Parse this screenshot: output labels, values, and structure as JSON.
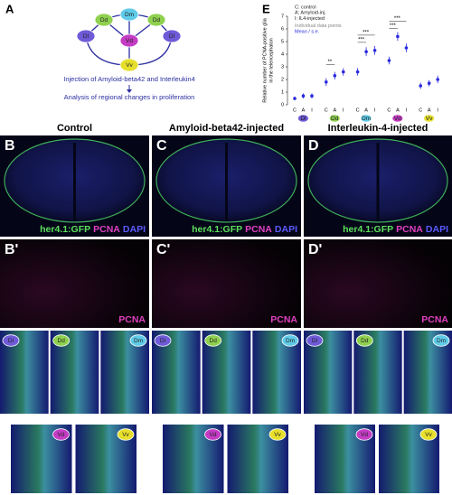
{
  "panel_a": {
    "label": "A",
    "nodes": [
      "Dd",
      "Dm",
      "Dd",
      "Dl",
      "Vd",
      "Dl",
      "Vv"
    ],
    "caption": [
      "Injection of Amyloid-beta42 and Interleukin4",
      "Analysis of regional changes in proliferation"
    ]
  },
  "panel_e": {
    "label": "E",
    "legend": [
      "C: control",
      "A: Amyloid-inj.",
      "I: IL4-injected",
      "Individual data points",
      "Mean / s.e."
    ],
    "y_label": [
      "Relative number of PCNA-positive glia",
      "in the telencephalon"
    ],
    "ylim": [
      0,
      7
    ],
    "yticks": [
      0,
      1,
      2,
      3,
      4,
      5,
      6,
      7
    ],
    "groups": [
      "Dl",
      "Dd",
      "Dm",
      "Vd",
      "Vv"
    ],
    "conditions": [
      "C",
      "A",
      "I"
    ],
    "means": [
      [
        0.5,
        0.7,
        0.7
      ],
      [
        1.8,
        2.3,
        2.6
      ],
      [
        2.6,
        4.2,
        4.3
      ],
      [
        3.5,
        5.4,
        4.5
      ],
      [
        1.5,
        1.7,
        2.0
      ]
    ],
    "errors": [
      [
        0.15,
        0.2,
        0.2
      ],
      [
        0.3,
        0.3,
        0.3
      ],
      [
        0.3,
        0.35,
        0.35
      ],
      [
        0.3,
        0.35,
        0.35
      ],
      [
        0.25,
        0.25,
        0.3
      ]
    ],
    "significance": [
      [],
      [
        "**"
      ],
      [
        "***",
        "***"
      ],
      [
        "***",
        "***"
      ],
      []
    ]
  },
  "stain_labels": [
    "her4.1:GFP",
    "PCNA",
    "DAPI"
  ],
  "panels": [
    {
      "header": "Control",
      "letter": "B",
      "letter2": "B'",
      "tags": [
        "Dl",
        "Dd",
        "Dm",
        "Vd",
        "Vv"
      ]
    },
    {
      "header": "Amyloid-beta42-injected",
      "letter": "C",
      "letter2": "C'",
      "tags": [
        "Dl",
        "Dd",
        "Dm",
        "Vd",
        "Vv"
      ]
    },
    {
      "header": "Interleukin-4-injected",
      "letter": "D",
      "letter2": "D'",
      "tags": [
        "Dl",
        "Dd",
        "Dm",
        "Vd",
        "Vv"
      ]
    }
  ]
}
